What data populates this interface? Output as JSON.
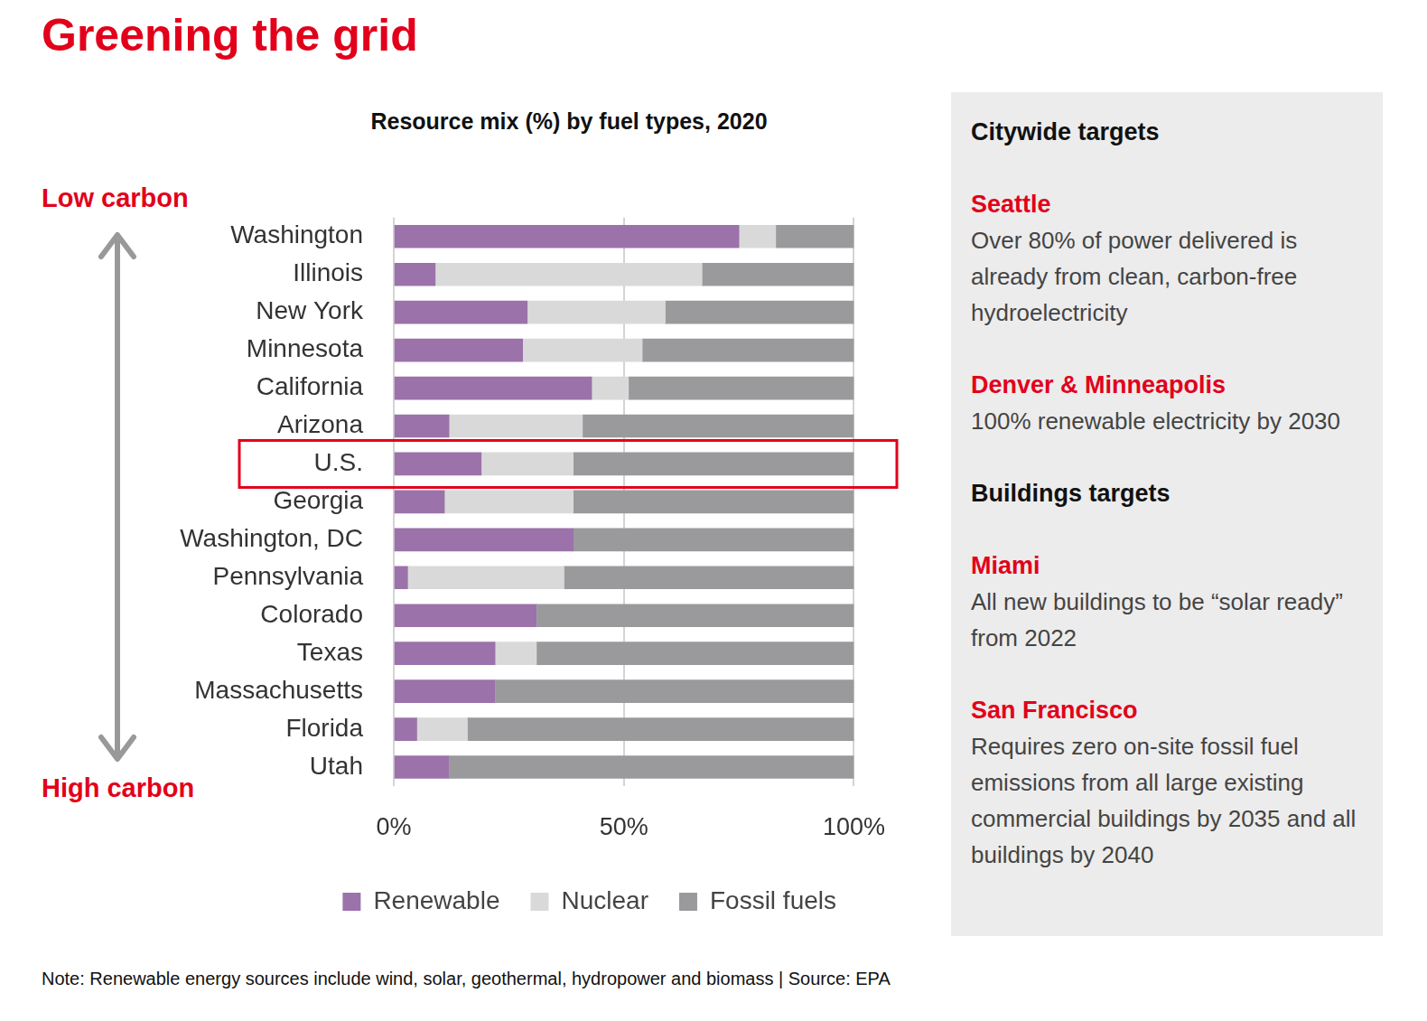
{
  "title": "Greening the grid",
  "arrow_labels": {
    "top": "Low carbon",
    "bottom": "High carbon"
  },
  "chart_data": {
    "type": "bar",
    "title": "Resource mix (%) by fuel types, 2020",
    "orientation": "horizontal",
    "stacked": true,
    "grid": true,
    "legend": "bottom",
    "categories": [
      "Washington",
      "Illinois",
      "New York",
      "Minnesota",
      "California",
      "Arizona",
      "U.S.",
      "Georgia",
      "Washington, DC",
      "Pennsylvania",
      "Colorado",
      "Texas",
      "Massachusetts",
      "Florida",
      "Utah"
    ],
    "series": [
      {
        "name": "Renewable",
        "color": "#9b72aa",
        "values": [
          75,
          9,
          29,
          28,
          43,
          12,
          19,
          11,
          39,
          3,
          31,
          22,
          22,
          5,
          12
        ]
      },
      {
        "name": "Nuclear",
        "color": "#d9d9d9",
        "values": [
          8,
          58,
          30,
          26,
          8,
          29,
          20,
          28,
          0,
          34,
          0,
          9,
          0,
          11,
          0
        ]
      },
      {
        "name": "Fossil fuels",
        "color": "#9a9a9c",
        "values": [
          17,
          33,
          41,
          46,
          49,
          59,
          61,
          61,
          61,
          63,
          69,
          69,
          78,
          84,
          88
        ]
      }
    ],
    "xlim": [
      0,
      100
    ],
    "xticks": [
      {
        "value": 0,
        "label": "0%"
      },
      {
        "value": 50,
        "label": "50%"
      },
      {
        "value": 100,
        "label": "100%"
      }
    ]
  },
  "panel": {
    "sections": [
      {
        "heading": "Citywide targets",
        "items": [
          {
            "name": "Seattle",
            "text": "Over 80% of power delivered is already from clean, carbon-free hydroelectricity"
          },
          {
            "name": "Denver & Minneapolis",
            "text": "100% renewable electricity by 2030"
          }
        ]
      },
      {
        "heading": "Buildings targets",
        "items": [
          {
            "name": "Miami",
            "text": "All new buildings to be “solar ready” from 2022"
          },
          {
            "name": "San Francisco",
            "text": "Requires zero on-site fossil fuel emissions from all large existing commercial buildings by 2035 and all buildings by 2040"
          }
        ]
      }
    ]
  },
  "note": "Note: Renewable energy sources include wind, solar, geothermal, hydropower and biomass  |  Source: EPA"
}
